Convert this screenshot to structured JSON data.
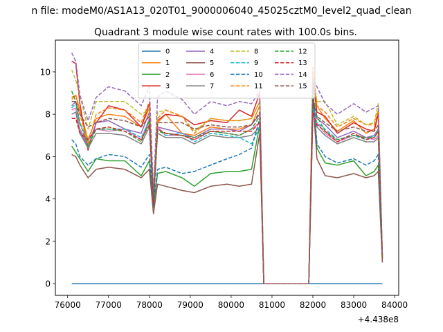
{
  "figure": {
    "suptitle": "n file: modeM0/AS1A13_020T01_9000006040_45025cztM0_level2_quad_clean",
    "title": "Quadrant 3 module wise count rates with 100.0s bins.",
    "offset_label": "+4.438e8"
  },
  "chart_data": {
    "type": "line",
    "title": "Quadrant 3 module wise count rates with 100.0s bins.",
    "xlabel": "",
    "ylabel": "",
    "x_offset": 443800000,
    "xlim": [
      75700,
      84100
    ],
    "ylim": [
      -0.55,
      11.5
    ],
    "xticks": [
      76000,
      77000,
      78000,
      79000,
      80000,
      81000,
      82000,
      83000,
      84000
    ],
    "yticks": [
      0,
      2,
      4,
      6,
      8,
      10
    ],
    "grid": false,
    "legend": {
      "position": "top-center",
      "columns": 4
    },
    "anchor_x": [
      76100,
      76200,
      76300,
      76500,
      76700,
      77000,
      77400,
      77800,
      78000,
      78100,
      78200,
      78400,
      78800,
      79100,
      79500,
      79900,
      80200,
      80500,
      80700,
      80800,
      81900,
      82000,
      82100,
      82300,
      82600,
      83000,
      83300,
      83500,
      83600,
      83700
    ],
    "series": [
      {
        "name": "0",
        "color": "#1f77b4",
        "dash": "solid",
        "values": [
          0,
          0,
          0,
          0,
          0,
          0,
          0,
          0,
          0,
          0,
          0,
          0,
          0,
          0,
          0,
          0,
          0,
          0,
          0,
          0,
          0,
          0,
          0,
          0,
          0,
          0,
          0,
          0,
          0,
          0
        ]
      },
      {
        "name": "1",
        "color": "#ff7f0e",
        "dash": "solid",
        "values": [
          8.7,
          8.9,
          8.2,
          6.8,
          7.8,
          8.0,
          7.9,
          7.4,
          8.3,
          4.0,
          7.6,
          8.0,
          7.1,
          7.0,
          7.4,
          7.3,
          7.3,
          7.5,
          8.4,
          0,
          0,
          9.9,
          8.4,
          7.8,
          7.2,
          7.7,
          7.1,
          7.3,
          8.1,
          1.3
        ]
      },
      {
        "name": "2",
        "color": "#2ca02c",
        "dash": "solid",
        "values": [
          6.5,
          6.2,
          5.9,
          5.3,
          5.9,
          5.8,
          5.8,
          5.1,
          5.8,
          3.6,
          5.2,
          5.3,
          5.0,
          4.6,
          5.2,
          5.3,
          5.3,
          5.4,
          7.5,
          0,
          0,
          9.2,
          6.4,
          5.7,
          5.6,
          5.8,
          5.1,
          5.3,
          5.6,
          1.1
        ]
      },
      {
        "name": "3",
        "color": "#d62728",
        "dash": "solid",
        "values": [
          10.5,
          10.4,
          8.5,
          6.3,
          7.6,
          8.4,
          8.2,
          7.4,
          8.5,
          3.7,
          7.7,
          8.0,
          7.9,
          7.5,
          7.7,
          7.6,
          8.2,
          7.9,
          9.0,
          0,
          0,
          9.6,
          8.1,
          7.9,
          7.1,
          7.6,
          7.3,
          7.2,
          8.0,
          1.3
        ]
      },
      {
        "name": "4",
        "color": "#9467bd",
        "dash": "solid",
        "values": [
          8.4,
          8.6,
          7.2,
          6.5,
          7.6,
          7.7,
          7.3,
          7.1,
          8.1,
          3.8,
          7.4,
          7.3,
          7.1,
          6.9,
          7.3,
          7.3,
          7.2,
          7.5,
          8.0,
          0,
          0,
          8.3,
          7.8,
          7.5,
          6.9,
          7.2,
          6.9,
          7.0,
          7.3,
          1.2
        ]
      },
      {
        "name": "5",
        "color": "#8c564b",
        "dash": "solid",
        "values": [
          6.1,
          6.0,
          5.6,
          5.0,
          5.4,
          5.5,
          5.4,
          5.0,
          5.4,
          3.3,
          4.7,
          4.6,
          4.4,
          4.3,
          4.6,
          4.7,
          4.6,
          4.7,
          7.1,
          0,
          0,
          8.7,
          5.9,
          5.1,
          5.0,
          5.2,
          5.0,
          5.1,
          5.3,
          1.0
        ]
      },
      {
        "name": "6",
        "color": "#e377c2",
        "dash": "solid",
        "values": [
          8.2,
          8.3,
          7.3,
          6.6,
          7.3,
          7.2,
          7.3,
          6.8,
          7.8,
          3.9,
          7.4,
          7.0,
          7.0,
          6.8,
          7.2,
          7.1,
          7.0,
          7.3,
          7.6,
          0,
          0,
          8.1,
          7.6,
          7.1,
          6.7,
          7.0,
          6.9,
          6.8,
          7.0,
          1.2
        ]
      },
      {
        "name": "7",
        "color": "#7f7f7f",
        "dash": "solid",
        "values": [
          8.0,
          8.1,
          7.1,
          6.4,
          7.1,
          7.1,
          7.0,
          6.6,
          7.4,
          3.8,
          7.1,
          6.9,
          6.9,
          6.6,
          7.0,
          6.9,
          6.9,
          7.0,
          7.4,
          0,
          0,
          8.0,
          7.4,
          7.0,
          6.6,
          6.9,
          6.7,
          6.7,
          6.9,
          1.2
        ]
      },
      {
        "name": "8",
        "color": "#bcbd22",
        "dash": "dashed",
        "values": [
          10.1,
          9.6,
          8.9,
          7.3,
          8.6,
          8.6,
          8.6,
          8.0,
          8.2,
          4.1,
          8.1,
          8.2,
          7.9,
          7.2,
          7.8,
          7.7,
          7.7,
          7.8,
          8.6,
          0,
          0,
          9.8,
          8.6,
          8.6,
          7.5,
          7.9,
          7.5,
          7.6,
          8.5,
          1.3
        ]
      },
      {
        "name": "9",
        "color": "#17becf",
        "dash": "dashed",
        "values": [
          8.3,
          8.5,
          7.6,
          6.7,
          7.3,
          7.3,
          7.3,
          6.9,
          7.7,
          4.0,
          7.3,
          7.0,
          7.1,
          6.7,
          7.1,
          7.0,
          6.9,
          6.6,
          7.4,
          0,
          0,
          8.3,
          7.6,
          7.3,
          6.8,
          7.0,
          6.8,
          7.0,
          7.2,
          1.2
        ]
      },
      {
        "name": "10",
        "color": "#1f77b4",
        "dash": "dashed",
        "values": [
          6.8,
          6.6,
          6.0,
          5.6,
          5.9,
          6.1,
          6.0,
          5.5,
          6.1,
          3.7,
          5.4,
          5.5,
          5.2,
          5.3,
          5.6,
          5.9,
          6.1,
          6.4,
          7.8,
          0,
          0,
          9.1,
          6.6,
          6.0,
          5.7,
          5.9,
          5.6,
          5.8,
          6.1,
          1.2
        ]
      },
      {
        "name": "11",
        "color": "#ff7f0e",
        "dash": "dashed",
        "values": [
          8.8,
          8.9,
          8.0,
          6.6,
          8.0,
          8.3,
          8.2,
          7.6,
          8.6,
          4.1,
          7.8,
          8.2,
          7.9,
          7.1,
          7.8,
          7.7,
          7.7,
          7.8,
          8.6,
          0,
          0,
          10.2,
          8.4,
          8.1,
          7.4,
          7.8,
          7.5,
          7.5,
          8.2,
          1.3
        ]
      },
      {
        "name": "12",
        "color": "#2ca02c",
        "dash": "dashed",
        "values": [
          9.1,
          8.6,
          7.6,
          6.5,
          7.3,
          7.3,
          7.2,
          6.7,
          7.7,
          3.9,
          7.2,
          7.1,
          7.0,
          6.9,
          7.2,
          7.1,
          7.0,
          7.3,
          7.9,
          0,
          0,
          8.9,
          7.9,
          7.2,
          6.8,
          7.0,
          6.9,
          6.9,
          7.2,
          1.2
        ]
      },
      {
        "name": "13",
        "color": "#d62728",
        "dash": "dashed",
        "values": [
          7.8,
          7.8,
          7.1,
          6.8,
          7.3,
          7.4,
          7.2,
          6.8,
          7.5,
          3.8,
          7.3,
          7.1,
          7.0,
          6.8,
          7.2,
          7.2,
          7.2,
          7.2,
          7.6,
          0,
          0,
          8.1,
          7.5,
          7.2,
          6.7,
          7.1,
          6.8,
          6.9,
          7.2,
          1.2
        ]
      },
      {
        "name": "14",
        "color": "#9467bd",
        "dash": "dashed",
        "values": [
          10.9,
          10.5,
          8.9,
          7.7,
          8.8,
          9.3,
          9.1,
          8.4,
          9.3,
          4.3,
          8.8,
          9.1,
          8.7,
          8.0,
          8.6,
          8.4,
          8.6,
          8.5,
          9.1,
          0,
          0,
          9.6,
          9.3,
          8.5,
          8.0,
          8.5,
          8.1,
          8.3,
          8.4,
          1.4
        ]
      },
      {
        "name": "15",
        "color": "#8c564b",
        "dash": "dashed",
        "values": [
          8.6,
          8.6,
          8.0,
          7.4,
          7.6,
          7.8,
          7.7,
          7.4,
          7.9,
          4.0,
          7.6,
          7.6,
          7.6,
          7.3,
          7.5,
          7.4,
          7.4,
          7.5,
          8.1,
          0,
          0,
          8.7,
          7.9,
          7.6,
          7.2,
          7.4,
          7.2,
          7.2,
          7.5,
          1.3
        ]
      }
    ]
  }
}
